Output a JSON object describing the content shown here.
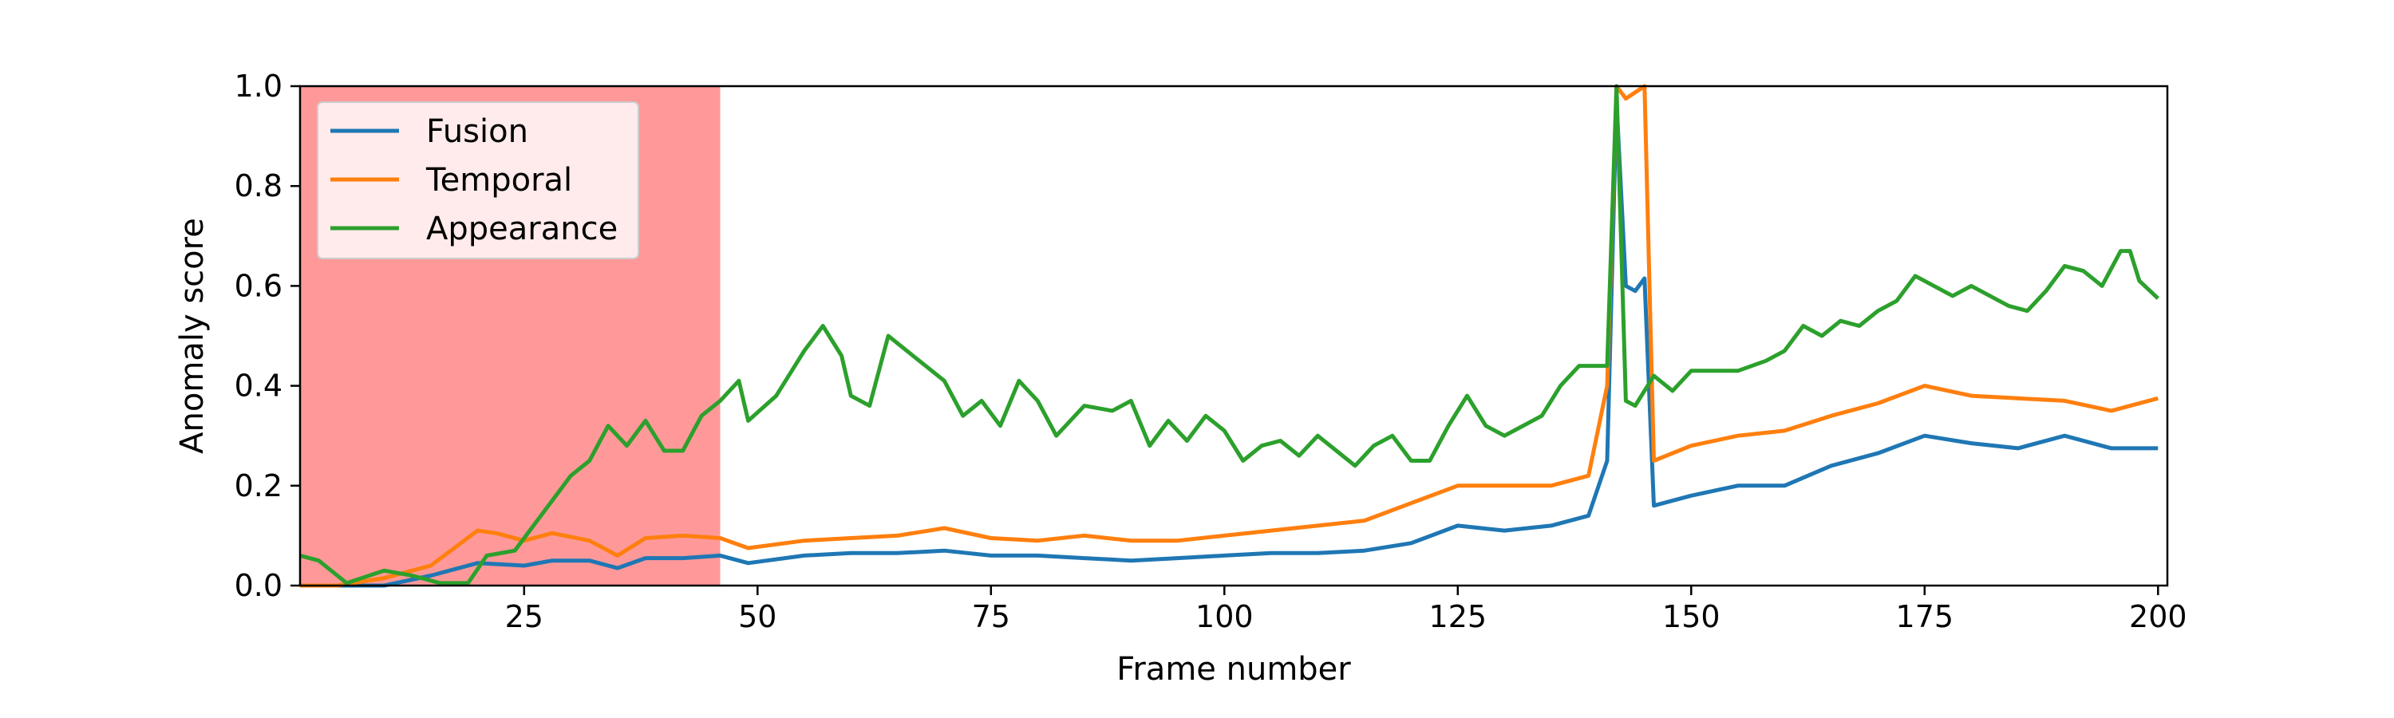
{
  "chart_data": {
    "type": "line",
    "title": "",
    "xlabel": "Frame number",
    "ylabel": "Anomaly score",
    "xlim": [
      1,
      201
    ],
    "ylim": [
      0.0,
      1.0
    ],
    "xticks": [
      25,
      50,
      75,
      100,
      125,
      150,
      175,
      200
    ],
    "yticks": [
      0.0,
      0.2,
      0.4,
      0.6,
      0.8,
      1.0
    ],
    "xtick_labels": [
      "25",
      "50",
      "75",
      "100",
      "125",
      "150",
      "175",
      "200"
    ],
    "ytick_labels": [
      "0.0",
      "0.2",
      "0.4",
      "0.6",
      "0.8",
      "1.0"
    ],
    "grid": false,
    "legend_position": "top-left",
    "highlight_region": {
      "x_start": 1,
      "x_end": 46,
      "color": "#ff9999"
    },
    "series": [
      {
        "name": "Fusion",
        "color": "#1f77b4",
        "points": [
          [
            1,
            0.0
          ],
          [
            5,
            0.0
          ],
          [
            10,
            0.0
          ],
          [
            15,
            0.02
          ],
          [
            20,
            0.045
          ],
          [
            25,
            0.04
          ],
          [
            28,
            0.05
          ],
          [
            32,
            0.05
          ],
          [
            35,
            0.035
          ],
          [
            38,
            0.055
          ],
          [
            42,
            0.055
          ],
          [
            46,
            0.06
          ],
          [
            49,
            0.045
          ],
          [
            55,
            0.06
          ],
          [
            60,
            0.065
          ],
          [
            65,
            0.065
          ],
          [
            70,
            0.07
          ],
          [
            75,
            0.06
          ],
          [
            80,
            0.06
          ],
          [
            85,
            0.055
          ],
          [
            90,
            0.05
          ],
          [
            95,
            0.055
          ],
          [
            100,
            0.06
          ],
          [
            105,
            0.065
          ],
          [
            110,
            0.065
          ],
          [
            115,
            0.07
          ],
          [
            120,
            0.085
          ],
          [
            125,
            0.12
          ],
          [
            130,
            0.11
          ],
          [
            135,
            0.12
          ],
          [
            139,
            0.14
          ],
          [
            141,
            0.25
          ],
          [
            142,
            0.97
          ],
          [
            143,
            0.6
          ],
          [
            144,
            0.59
          ],
          [
            145,
            0.615
          ],
          [
            146,
            0.16
          ],
          [
            150,
            0.18
          ],
          [
            155,
            0.2
          ],
          [
            160,
            0.2
          ],
          [
            165,
            0.24
          ],
          [
            170,
            0.265
          ],
          [
            175,
            0.3
          ],
          [
            180,
            0.285
          ],
          [
            185,
            0.275
          ],
          [
            190,
            0.3
          ],
          [
            195,
            0.275
          ],
          [
            200,
            0.275
          ]
        ]
      },
      {
        "name": "Temporal",
        "color": "#ff7f0e",
        "points": [
          [
            1,
            0.0
          ],
          [
            5,
            0.0
          ],
          [
            10,
            0.015
          ],
          [
            15,
            0.04
          ],
          [
            20,
            0.11
          ],
          [
            22,
            0.105
          ],
          [
            25,
            0.09
          ],
          [
            28,
            0.105
          ],
          [
            32,
            0.09
          ],
          [
            35,
            0.06
          ],
          [
            38,
            0.095
          ],
          [
            42,
            0.1
          ],
          [
            46,
            0.095
          ],
          [
            49,
            0.075
          ],
          [
            55,
            0.09
          ],
          [
            60,
            0.095
          ],
          [
            65,
            0.1
          ],
          [
            70,
            0.115
          ],
          [
            75,
            0.095
          ],
          [
            80,
            0.09
          ],
          [
            85,
            0.1
          ],
          [
            90,
            0.09
          ],
          [
            95,
            0.09
          ],
          [
            100,
            0.1
          ],
          [
            105,
            0.11
          ],
          [
            110,
            0.12
          ],
          [
            115,
            0.13
          ],
          [
            120,
            0.165
          ],
          [
            125,
            0.2
          ],
          [
            130,
            0.2
          ],
          [
            135,
            0.2
          ],
          [
            139,
            0.22
          ],
          [
            141,
            0.4
          ],
          [
            142,
            1.0
          ],
          [
            143,
            0.975
          ],
          [
            145,
            1.0
          ],
          [
            146,
            0.25
          ],
          [
            150,
            0.28
          ],
          [
            155,
            0.3
          ],
          [
            160,
            0.31
          ],
          [
            165,
            0.34
          ],
          [
            170,
            0.365
          ],
          [
            175,
            0.4
          ],
          [
            180,
            0.38
          ],
          [
            185,
            0.375
          ],
          [
            190,
            0.37
          ],
          [
            195,
            0.35
          ],
          [
            200,
            0.375
          ]
        ]
      },
      {
        "name": "Appearance",
        "color": "#2ca02c",
        "points": [
          [
            1,
            0.06
          ],
          [
            3,
            0.05
          ],
          [
            6,
            0.005
          ],
          [
            10,
            0.03
          ],
          [
            13,
            0.02
          ],
          [
            16,
            0.005
          ],
          [
            19,
            0.005
          ],
          [
            21,
            0.06
          ],
          [
            24,
            0.07
          ],
          [
            26,
            0.12
          ],
          [
            28,
            0.17
          ],
          [
            30,
            0.22
          ],
          [
            32,
            0.25
          ],
          [
            34,
            0.32
          ],
          [
            36,
            0.28
          ],
          [
            38,
            0.33
          ],
          [
            40,
            0.27
          ],
          [
            42,
            0.27
          ],
          [
            44,
            0.34
          ],
          [
            46,
            0.37
          ],
          [
            48,
            0.41
          ],
          [
            49,
            0.33
          ],
          [
            52,
            0.38
          ],
          [
            55,
            0.47
          ],
          [
            57,
            0.52
          ],
          [
            59,
            0.46
          ],
          [
            60,
            0.38
          ],
          [
            62,
            0.36
          ],
          [
            64,
            0.5
          ],
          [
            66,
            0.47
          ],
          [
            68,
            0.44
          ],
          [
            70,
            0.41
          ],
          [
            72,
            0.34
          ],
          [
            74,
            0.37
          ],
          [
            76,
            0.32
          ],
          [
            78,
            0.41
          ],
          [
            80,
            0.37
          ],
          [
            82,
            0.3
          ],
          [
            85,
            0.36
          ],
          [
            88,
            0.35
          ],
          [
            90,
            0.37
          ],
          [
            92,
            0.28
          ],
          [
            94,
            0.33
          ],
          [
            96,
            0.29
          ],
          [
            98,
            0.34
          ],
          [
            100,
            0.31
          ],
          [
            102,
            0.25
          ],
          [
            104,
            0.28
          ],
          [
            106,
            0.29
          ],
          [
            108,
            0.26
          ],
          [
            110,
            0.3
          ],
          [
            112,
            0.27
          ],
          [
            114,
            0.24
          ],
          [
            116,
            0.28
          ],
          [
            118,
            0.3
          ],
          [
            120,
            0.25
          ],
          [
            122,
            0.25
          ],
          [
            124,
            0.32
          ],
          [
            126,
            0.38
          ],
          [
            128,
            0.32
          ],
          [
            130,
            0.3
          ],
          [
            132,
            0.32
          ],
          [
            134,
            0.34
          ],
          [
            136,
            0.4
          ],
          [
            138,
            0.44
          ],
          [
            140,
            0.44
          ],
          [
            141,
            0.44
          ],
          [
            142,
            1.0
          ],
          [
            143,
            0.37
          ],
          [
            144,
            0.36
          ],
          [
            146,
            0.42
          ],
          [
            148,
            0.39
          ],
          [
            150,
            0.43
          ],
          [
            152,
            0.43
          ],
          [
            155,
            0.43
          ],
          [
            158,
            0.45
          ],
          [
            160,
            0.47
          ],
          [
            162,
            0.52
          ],
          [
            164,
            0.5
          ],
          [
            166,
            0.53
          ],
          [
            168,
            0.52
          ],
          [
            170,
            0.55
          ],
          [
            172,
            0.57
          ],
          [
            174,
            0.62
          ],
          [
            176,
            0.6
          ],
          [
            178,
            0.58
          ],
          [
            180,
            0.6
          ],
          [
            182,
            0.58
          ],
          [
            184,
            0.56
          ],
          [
            186,
            0.55
          ],
          [
            188,
            0.59
          ],
          [
            190,
            0.64
          ],
          [
            192,
            0.63
          ],
          [
            194,
            0.6
          ],
          [
            196,
            0.67
          ],
          [
            197,
            0.67
          ],
          [
            198,
            0.61
          ],
          [
            200,
            0.575
          ]
        ]
      }
    ]
  }
}
